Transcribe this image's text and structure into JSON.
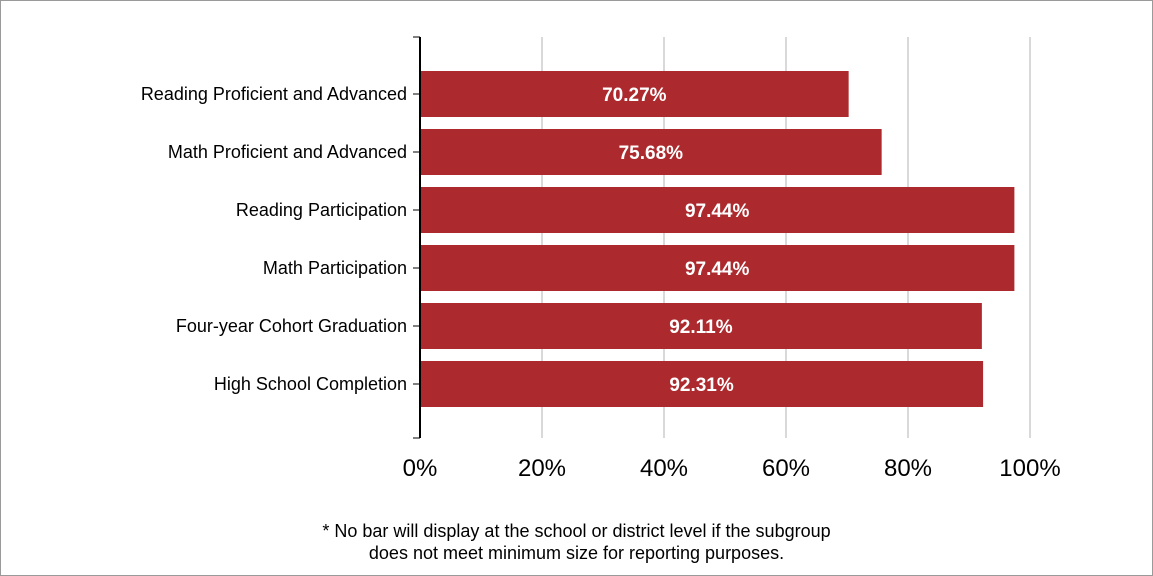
{
  "chart_data": {
    "type": "bar",
    "orientation": "horizontal",
    "categories": [
      "Reading Proficient and Advanced",
      "Math Proficient and Advanced",
      "Reading Participation",
      "Math Participation",
      "Four-year Cohort Graduation",
      "High School Completion"
    ],
    "values": [
      70.27,
      75.68,
      97.44,
      97.44,
      92.11,
      92.31
    ],
    "data_labels": [
      "70.27%",
      "75.68%",
      "97.44%",
      "97.44%",
      "92.11%",
      "92.31%"
    ],
    "xlim": [
      0,
      100
    ],
    "x_ticks": [
      0,
      20,
      40,
      60,
      80,
      100
    ],
    "x_tick_labels": [
      "0%",
      "20%",
      "40%",
      "60%",
      "80%",
      "100%"
    ],
    "grid": true,
    "bar_color": "#ac2a2e",
    "grid_color": "#d9d9d9"
  },
  "footnote": {
    "line1": "* No bar will display at the school or district level if the subgroup",
    "line2": "does not meet minimum size for reporting purposes."
  }
}
